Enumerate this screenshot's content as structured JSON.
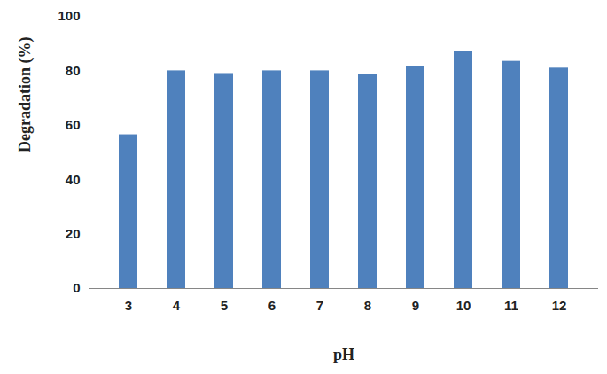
{
  "chart_data": {
    "type": "bar",
    "x_label": "pH",
    "y_label": "Degradation (%)",
    "categories": [
      "3",
      "4",
      "5",
      "6",
      "7",
      "8",
      "9",
      "10",
      "11",
      "12"
    ],
    "values": [
      56.5,
      80,
      79,
      80,
      80,
      78.5,
      81.5,
      87,
      83.5,
      81
    ],
    "color": "#4f81bd",
    "ylim": [
      0,
      100
    ],
    "yticks": [
      0,
      20,
      40,
      60,
      80,
      100
    ],
    "grid": false
  }
}
